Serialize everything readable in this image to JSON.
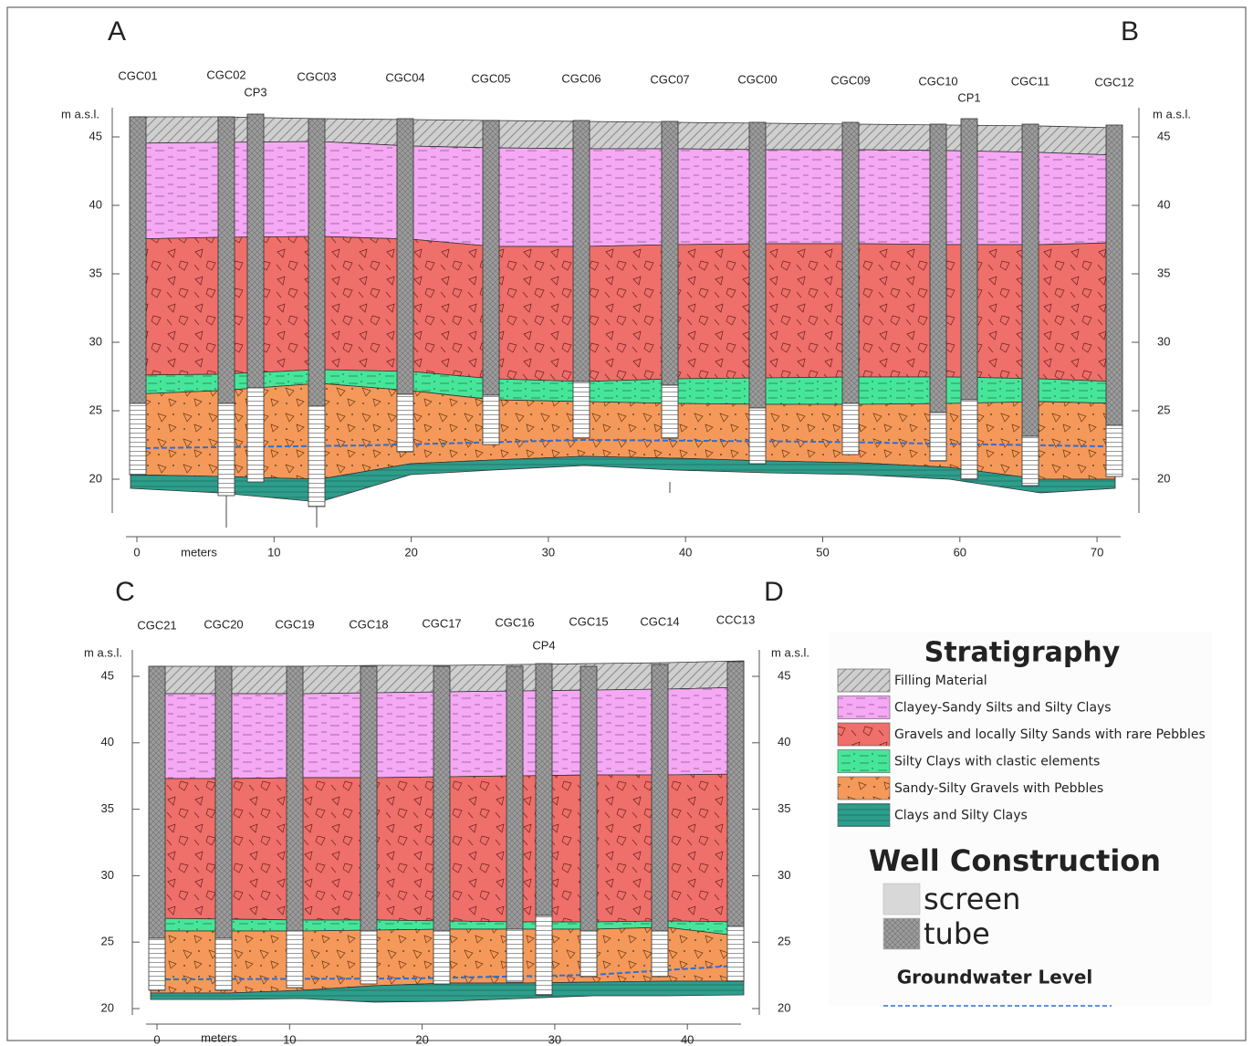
{
  "sections": [
    {
      "start_label": "A",
      "end_label": "B",
      "wells": [
        "CGC01",
        "CGC02",
        "CP3",
        "CGC03",
        "CGC04",
        "CGC05",
        "CGC06",
        "CGC07",
        "CGC00",
        "CGC09",
        "CGC10",
        "CP1",
        "CGC11",
        "CGC12"
      ],
      "y_axis_label": "m a.s.l.",
      "y_ticks": [
        45,
        40,
        35,
        30,
        25,
        20
      ],
      "x_axis_label": "meters",
      "x_ticks": [
        0,
        10,
        20,
        30,
        40,
        50,
        60,
        70
      ]
    },
    {
      "start_label": "C",
      "end_label": "D",
      "wells": [
        "CGC21",
        "CGC20",
        "CGC19",
        "CGC18",
        "CGC17",
        "CGC16",
        "CP4",
        "CGC15",
        "CGC14",
        "CCC13"
      ],
      "y_axis_label": "m a.s.l.",
      "y_ticks": [
        45,
        40,
        35,
        30,
        25,
        20
      ],
      "x_axis_label": "meters",
      "x_ticks": [
        0,
        10,
        20,
        30,
        40
      ]
    }
  ],
  "legend": {
    "title": "Stratigraphy",
    "items": [
      "Filling Material",
      "Clayey-Sandy Silts and Silty Clays",
      "Gravels and locally Silty Sands with rare Pebbles",
      "Silty Clays with clastic elements",
      "Sandy-Silty Gravels with Pebbles",
      "Clays and Silty Clays"
    ],
    "well_title": "Well Construction",
    "well_items": [
      "screen",
      "tube"
    ],
    "groundwater": "Groundwater Level"
  }
}
